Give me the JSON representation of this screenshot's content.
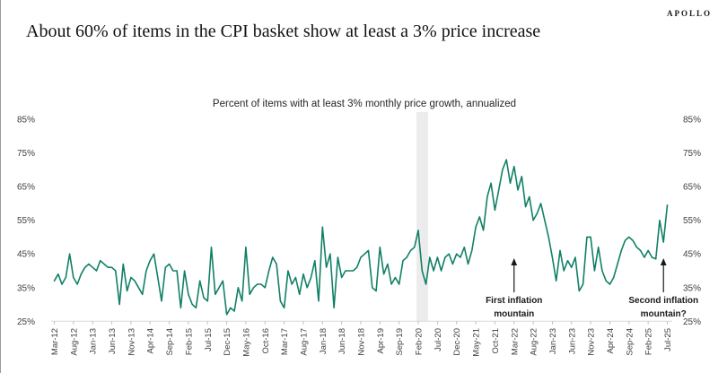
{
  "page": {
    "logo": "APOLLO",
    "title": "About 60% of items in the CPI basket show at least a 3% price increase"
  },
  "chart_data": {
    "type": "line",
    "title": "Percent of items with at least 3% monthly price growth, annualized",
    "start_month": "Mar-12",
    "end_month": "Jul-25",
    "x_tick_interval": 5,
    "x_tick_labels": [
      "Mar-12",
      "Aug-12",
      "Jan-13",
      "Jun-13",
      "Nov-13",
      "Apr-14",
      "Sep-14",
      "Feb-15",
      "Jul-15",
      "Dec-15",
      "May-16",
      "Oct-16",
      "Mar-17",
      "Aug-17",
      "Jan-18",
      "Jun-18",
      "Nov-18",
      "Apr-19",
      "Sep-19",
      "Feb-20",
      "Jul-20",
      "Dec-20",
      "May-21",
      "Oct-21",
      "Mar-22",
      "Aug-22",
      "Jan-23",
      "Jun-23",
      "Nov-23",
      "Apr-24",
      "Sep-24",
      "Feb-25",
      "Jul-25"
    ],
    "values": [
      37,
      39,
      36,
      38,
      45,
      38,
      36,
      39,
      41,
      42,
      41,
      40,
      43,
      42,
      41,
      41,
      40,
      30,
      42,
      34,
      38,
      37,
      35,
      33,
      40,
      43,
      45,
      38,
      31,
      41,
      42,
      40,
      40,
      29,
      40,
      33,
      30,
      29,
      37,
      32,
      31,
      47,
      33,
      35,
      37,
      27,
      29,
      28,
      35,
      31,
      47,
      33,
      35,
      36,
      36,
      35,
      40,
      44,
      42,
      31,
      29,
      40,
      36,
      38,
      33,
      39,
      35,
      38,
      43,
      31,
      53,
      41,
      45,
      29,
      44,
      38,
      40,
      40,
      40,
      41,
      44,
      45,
      46,
      35,
      34,
      47,
      39,
      42,
      36,
      38,
      36,
      43,
      44,
      46,
      47,
      52,
      40,
      36,
      44,
      40,
      44,
      40,
      44,
      45,
      42,
      45,
      44,
      47,
      42,
      46,
      53,
      56,
      52,
      62,
      66,
      58,
      64,
      70,
      73,
      66,
      71,
      64,
      68,
      59,
      62,
      55,
      57,
      60,
      55,
      50,
      44,
      37,
      46,
      40,
      43,
      41,
      44,
      34,
      36,
      50,
      50,
      40,
      47,
      40,
      37,
      36,
      38,
      42,
      46,
      49,
      50,
      49,
      47,
      46,
      44,
      46,
      44,
      43.5,
      55,
      48.5,
      59.5
    ],
    "ylim": [
      25,
      85
    ],
    "y_ticks": [
      25,
      35,
      45,
      55,
      65,
      75,
      85
    ],
    "y_tick_suffix": "%",
    "line_color": "#118066",
    "axis_color": "#d9d9d9",
    "tick_color": "#bfbfbf",
    "label_color": "#404040",
    "grid": "off",
    "recession_band": {
      "from_index": 95,
      "to_index": 98,
      "color": "#ececec"
    },
    "annotations": [
      {
        "line1": "First inflation",
        "line2": "mountain",
        "month_index": 120
      },
      {
        "line1": "Second inflation",
        "line2": "mountain?",
        "month_index": 159
      }
    ]
  }
}
